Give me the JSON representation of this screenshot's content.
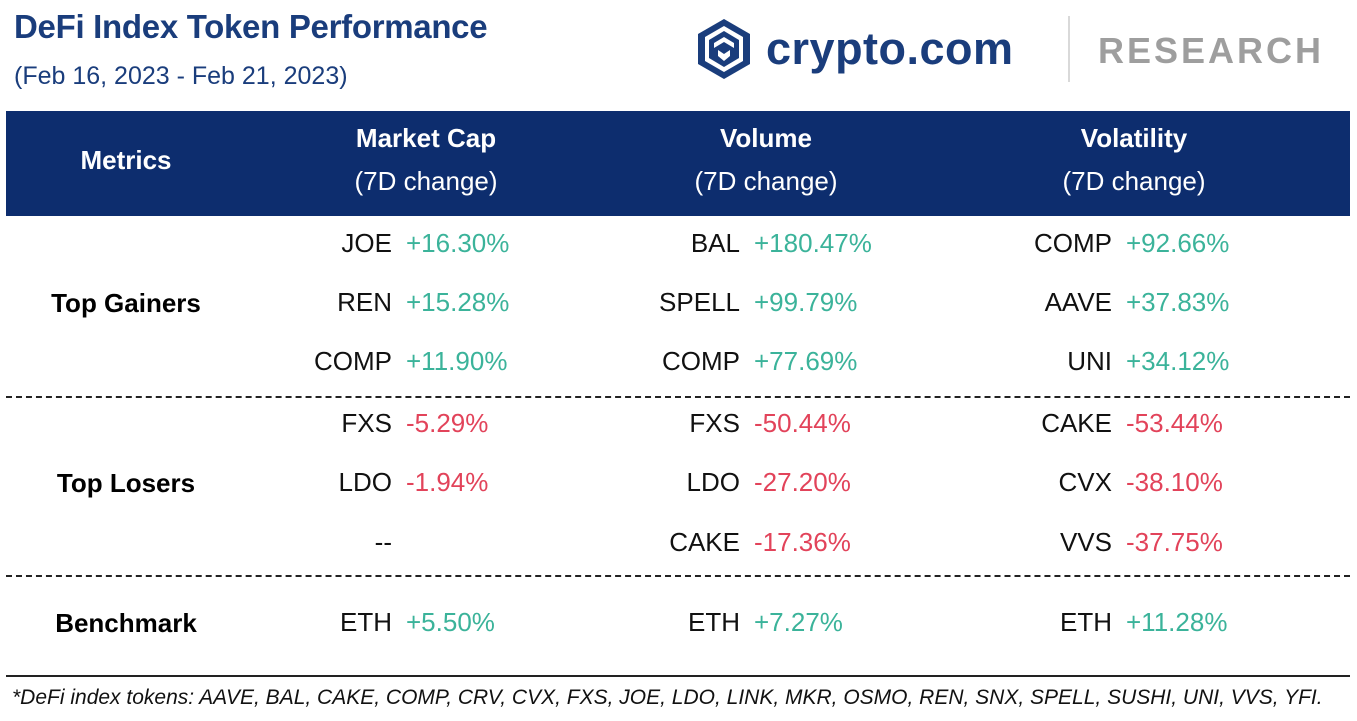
{
  "header": {
    "title": "DeFi Index Token Performance",
    "subtitle": "(Feb 16, 2023 - Feb 21, 2023)",
    "brand_name": "crypto.com",
    "brand_section": "RESEARCH"
  },
  "colors": {
    "header_bg": "#0d2d6e",
    "title": "#1a3d7c",
    "positive": "#3bb39a",
    "negative": "#e2435a"
  },
  "chart_data": {
    "type": "table",
    "title": "DeFi Index Token Performance",
    "columns": [
      {
        "label": "Metrics",
        "sub": ""
      },
      {
        "label": "Market Cap",
        "sub": "(7D change)"
      },
      {
        "label": "Volume",
        "sub": "(7D change)"
      },
      {
        "label": "Volatility",
        "sub": "(7D change)"
      }
    ],
    "groups": [
      {
        "label": "Top Gainers",
        "rows": [
          [
            {
              "token": "JOE",
              "change": "+16.30%"
            },
            {
              "token": "BAL",
              "change": "+180.47%"
            },
            {
              "token": "COMP",
              "change": "+92.66%"
            }
          ],
          [
            {
              "token": "REN",
              "change": "+15.28%"
            },
            {
              "token": "SPELL",
              "change": "+99.79%"
            },
            {
              "token": "AAVE",
              "change": "+37.83%"
            }
          ],
          [
            {
              "token": "COMP",
              "change": "+11.90%"
            },
            {
              "token": "COMP",
              "change": "+77.69%"
            },
            {
              "token": "UNI",
              "change": "+34.12%"
            }
          ]
        ]
      },
      {
        "label": "Top Losers",
        "rows": [
          [
            {
              "token": "FXS",
              "change": "-5.29%"
            },
            {
              "token": "FXS",
              "change": "-50.44%"
            },
            {
              "token": "CAKE",
              "change": "-53.44%"
            }
          ],
          [
            {
              "token": "LDO",
              "change": "-1.94%"
            },
            {
              "token": "LDO",
              "change": "-27.20%"
            },
            {
              "token": "CVX",
              "change": "-38.10%"
            }
          ],
          [
            {
              "token": "--",
              "change": ""
            },
            {
              "token": "CAKE",
              "change": "-17.36%"
            },
            {
              "token": "VVS",
              "change": "-37.75%"
            }
          ]
        ]
      },
      {
        "label": "Benchmark",
        "rows": [
          [
            {
              "token": "ETH",
              "change": "+5.50%"
            },
            {
              "token": "ETH",
              "change": "+7.27%"
            },
            {
              "token": "ETH",
              "change": "+11.28%"
            }
          ]
        ]
      }
    ]
  },
  "footnote": "*DeFi index tokens: AAVE, BAL, CAKE, COMP, CRV, CVX, FXS, JOE, LDO, LINK, MKR, OSMO, REN, SNX, SPELL, SUSHI, UNI, VVS, YFI."
}
